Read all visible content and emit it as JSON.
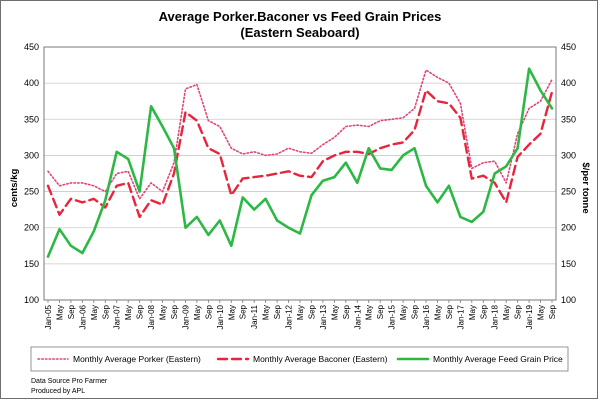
{
  "chart_data": {
    "type": "line",
    "title_line1": "Average Porker.Baconer vs Feed Grain Prices",
    "title_line2": "(Eastern Seaboard)",
    "ylabel_left": "cents/kg",
    "ylabel_right": "$/per tonne",
    "ylim_left": [
      100,
      450
    ],
    "ylim_right": [
      100,
      450
    ],
    "y_ticks_left": [
      "100",
      "150",
      "200",
      "250",
      "300",
      "350",
      "400",
      "450"
    ],
    "y_ticks_right": [
      "100",
      "150",
      "200",
      "250",
      "300",
      "350",
      "400",
      "450"
    ],
    "x_ticks": [
      "Jan-05",
      "May",
      "Sep",
      "Jan-06",
      "May",
      "Sep",
      "Jan-07",
      "May",
      "Sep",
      "Jan-08",
      "May",
      "Sep",
      "Jan-09",
      "May",
      "Sep",
      "Jan-10",
      "May",
      "Sep",
      "Jan-11",
      "May",
      "Sep",
      "Jan-12",
      "May",
      "Sep",
      "Jan-13",
      "May",
      "Sep",
      "Jan-14",
      "May",
      "Sep",
      "Jan-15",
      "May",
      "Sep",
      "Jan-16",
      "May",
      "Sep",
      "Jan-17",
      "May",
      "Sep",
      "Jan-18",
      "May",
      "Sep",
      "Jan-19",
      "May",
      "Sep"
    ],
    "grid": "horizontal",
    "legend_position": "bottom",
    "series": [
      {
        "name": "Monthly Average Porker (Eastern)",
        "color": "#e0457a",
        "axis": "left",
        "points": [
          [
            "Jan-05",
            278
          ],
          [
            "May",
            258
          ],
          [
            "Sep",
            262
          ],
          [
            "Jan-06",
            262
          ],
          [
            "May",
            258
          ],
          [
            "Sep",
            250
          ],
          [
            "Jan-07",
            275
          ],
          [
            "May",
            278
          ],
          [
            "Sep",
            240
          ],
          [
            "Jan-08",
            262
          ],
          [
            "May",
            250
          ],
          [
            "Sep",
            290
          ],
          [
            "Jan-09",
            392
          ],
          [
            "May",
            398
          ],
          [
            "Sep",
            348
          ],
          [
            "Jan-10",
            340
          ],
          [
            "May",
            310
          ],
          [
            "Sep",
            302
          ],
          [
            "Jan-11",
            305
          ],
          [
            "May",
            300
          ],
          [
            "Sep",
            302
          ],
          [
            "Jan-12",
            310
          ],
          [
            "May",
            305
          ],
          [
            "Sep",
            303
          ],
          [
            "Jan-13",
            315
          ],
          [
            "May",
            325
          ],
          [
            "Sep",
            340
          ],
          [
            "Jan-14",
            342
          ],
          [
            "May",
            340
          ],
          [
            "Sep",
            348
          ],
          [
            "Jan-15",
            350
          ],
          [
            "May",
            352
          ],
          [
            "Sep",
            365
          ],
          [
            "Jan-16",
            418
          ],
          [
            "May",
            408
          ],
          [
            "Sep",
            400
          ],
          [
            "Jan-17",
            372
          ],
          [
            "May",
            282
          ],
          [
            "Sep",
            290
          ],
          [
            "Jan-18",
            292
          ],
          [
            "May",
            262
          ],
          [
            "Sep",
            330
          ],
          [
            "Jan-19",
            365
          ],
          [
            "May",
            375
          ],
          [
            "Sep",
            405
          ]
        ]
      },
      {
        "name": "Monthly Average Baconer (Eastern)",
        "color": "#e8253c",
        "axis": "left",
        "points": [
          [
            "Jan-05",
            258
          ],
          [
            "May",
            218
          ],
          [
            "Sep",
            240
          ],
          [
            "Jan-06",
            235
          ],
          [
            "May",
            240
          ],
          [
            "Sep",
            228
          ],
          [
            "Jan-07",
            258
          ],
          [
            "May",
            262
          ],
          [
            "Sep",
            215
          ],
          [
            "Jan-08",
            238
          ],
          [
            "May",
            232
          ],
          [
            "Sep",
            275
          ],
          [
            "Jan-09",
            360
          ],
          [
            "May",
            348
          ],
          [
            "Sep",
            310
          ],
          [
            "Jan-10",
            302
          ],
          [
            "May",
            245
          ],
          [
            "Sep",
            268
          ],
          [
            "Jan-11",
            270
          ],
          [
            "May",
            272
          ],
          [
            "Sep",
            275
          ],
          [
            "Jan-12",
            278
          ],
          [
            "May",
            272
          ],
          [
            "Sep",
            270
          ],
          [
            "Jan-13",
            292
          ],
          [
            "May",
            300
          ],
          [
            "Sep",
            305
          ],
          [
            "Jan-14",
            305
          ],
          [
            "May",
            302
          ],
          [
            "Sep",
            310
          ],
          [
            "Jan-15",
            315
          ],
          [
            "May",
            318
          ],
          [
            "Sep",
            335
          ],
          [
            "Jan-16",
            390
          ],
          [
            "May",
            375
          ],
          [
            "Sep",
            372
          ],
          [
            "Jan-17",
            352
          ],
          [
            "May",
            268
          ],
          [
            "Sep",
            272
          ],
          [
            "Jan-18",
            262
          ],
          [
            "May",
            235
          ],
          [
            "Sep",
            298
          ],
          [
            "Jan-19",
            315
          ],
          [
            "May",
            330
          ],
          [
            "Sep",
            388
          ]
        ]
      },
      {
        "name": "Monthly Average Feed Grain Price",
        "color": "#2db845",
        "axis": "right",
        "points": [
          [
            "Jan-05",
            160
          ],
          [
            "May",
            198
          ],
          [
            "Sep",
            175
          ],
          [
            "Jan-06",
            165
          ],
          [
            "May",
            195
          ],
          [
            "Sep",
            238
          ],
          [
            "Jan-07",
            305
          ],
          [
            "May",
            295
          ],
          [
            "Sep",
            250
          ],
          [
            "Jan-08",
            368
          ],
          [
            "May",
            340
          ],
          [
            "Sep",
            310
          ],
          [
            "Jan-09",
            200
          ],
          [
            "May",
            215
          ],
          [
            "Sep",
            190
          ],
          [
            "Jan-10",
            210
          ],
          [
            "May",
            175
          ],
          [
            "Sep",
            242
          ],
          [
            "Jan-11",
            225
          ],
          [
            "May",
            240
          ],
          [
            "Sep",
            210
          ],
          [
            "Jan-12",
            200
          ],
          [
            "May",
            192
          ],
          [
            "Sep",
            245
          ],
          [
            "Jan-13",
            265
          ],
          [
            "May",
            270
          ],
          [
            "Sep",
            290
          ],
          [
            "Jan-14",
            262
          ],
          [
            "May",
            310
          ],
          [
            "Sep",
            282
          ],
          [
            "Jan-15",
            280
          ],
          [
            "May",
            300
          ],
          [
            "Sep",
            310
          ],
          [
            "Jan-16",
            258
          ],
          [
            "May",
            235
          ],
          [
            "Sep",
            258
          ],
          [
            "Jan-17",
            215
          ],
          [
            "May",
            208
          ],
          [
            "Sep",
            222
          ],
          [
            "Jan-18",
            275
          ],
          [
            "May",
            285
          ],
          [
            "Sep",
            310
          ],
          [
            "Jan-19",
            420
          ],
          [
            "May",
            390
          ],
          [
            "Sep",
            365
          ]
        ]
      }
    ],
    "legend": [
      {
        "label": "Monthly Average Porker (Eastern)",
        "style": "dotted",
        "color": "#e0457a"
      },
      {
        "label": "Monthly Average Baconer (Eastern)",
        "style": "dashed",
        "color": "#e8253c"
      },
      {
        "label": "Monthly Average Feed Grain Price",
        "style": "solid",
        "color": "#2db845"
      }
    ]
  },
  "footer": {
    "credit_line1": "Data Source Pro Farmer",
    "credit_line2": "Produced by APL"
  }
}
